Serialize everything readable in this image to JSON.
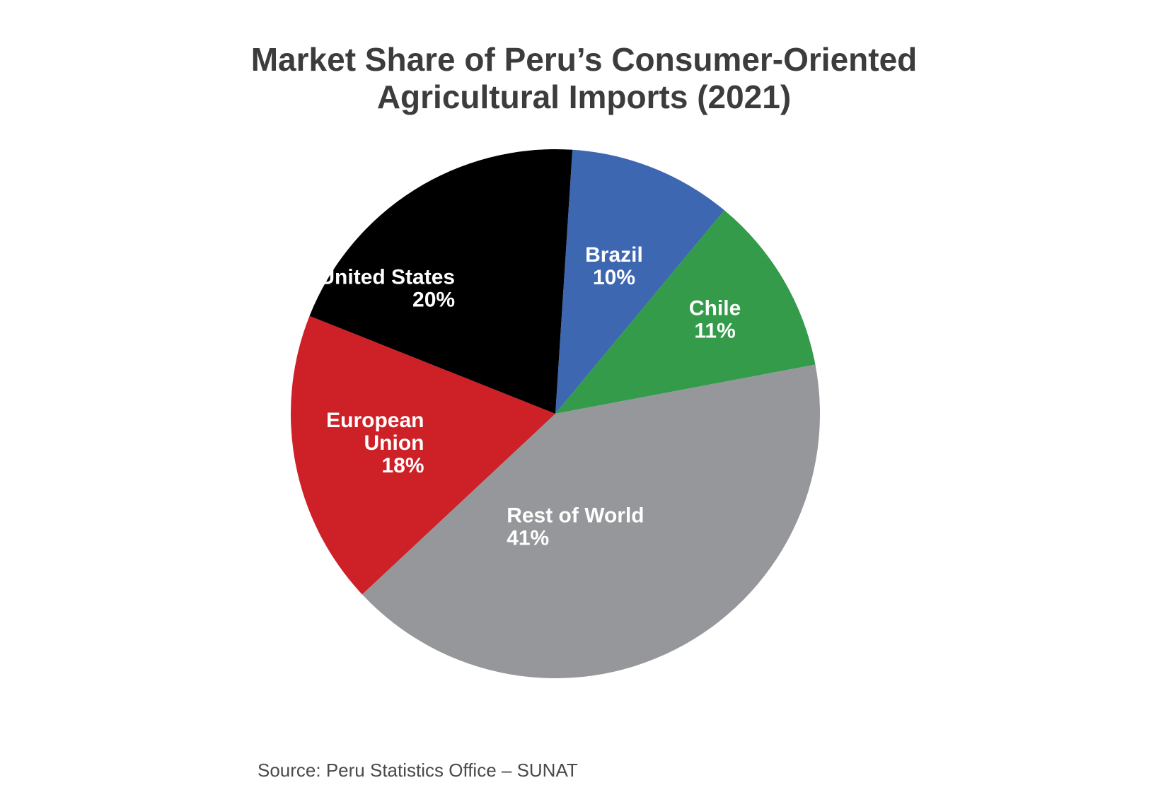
{
  "chart_data": {
    "type": "pie",
    "title": "Market Share of Peru’s Consumer-Oriented Agricultural Imports (2021)",
    "title_lines": [
      "Market Share of Peru’s Consumer-Oriented",
      "Agricultural Imports (2021)"
    ],
    "unit": "%",
    "slices": [
      {
        "label": "Brazil",
        "label_lines": [
          "Brazil"
        ],
        "value": 10,
        "value_label": "10%",
        "color": "#3e67b2"
      },
      {
        "label": "Chile",
        "label_lines": [
          "Chile"
        ],
        "value": 11,
        "value_label": "11%",
        "color": "#339b4a"
      },
      {
        "label": "Rest of World",
        "label_lines": [
          "Rest of World"
        ],
        "value": 41,
        "value_label": "41%",
        "color": "#96979a"
      },
      {
        "label": "European Union",
        "label_lines": [
          "European",
          "Union"
        ],
        "value": 18,
        "value_label": "18%",
        "color": "#cd2027"
      },
      {
        "label": "United States",
        "label_lines": [
          "United States"
        ],
        "value": 20,
        "value_label": "20%",
        "color": "#000000"
      }
    ],
    "legend": "none",
    "source": "Source: Peru Statistics Office – SUNAT"
  }
}
